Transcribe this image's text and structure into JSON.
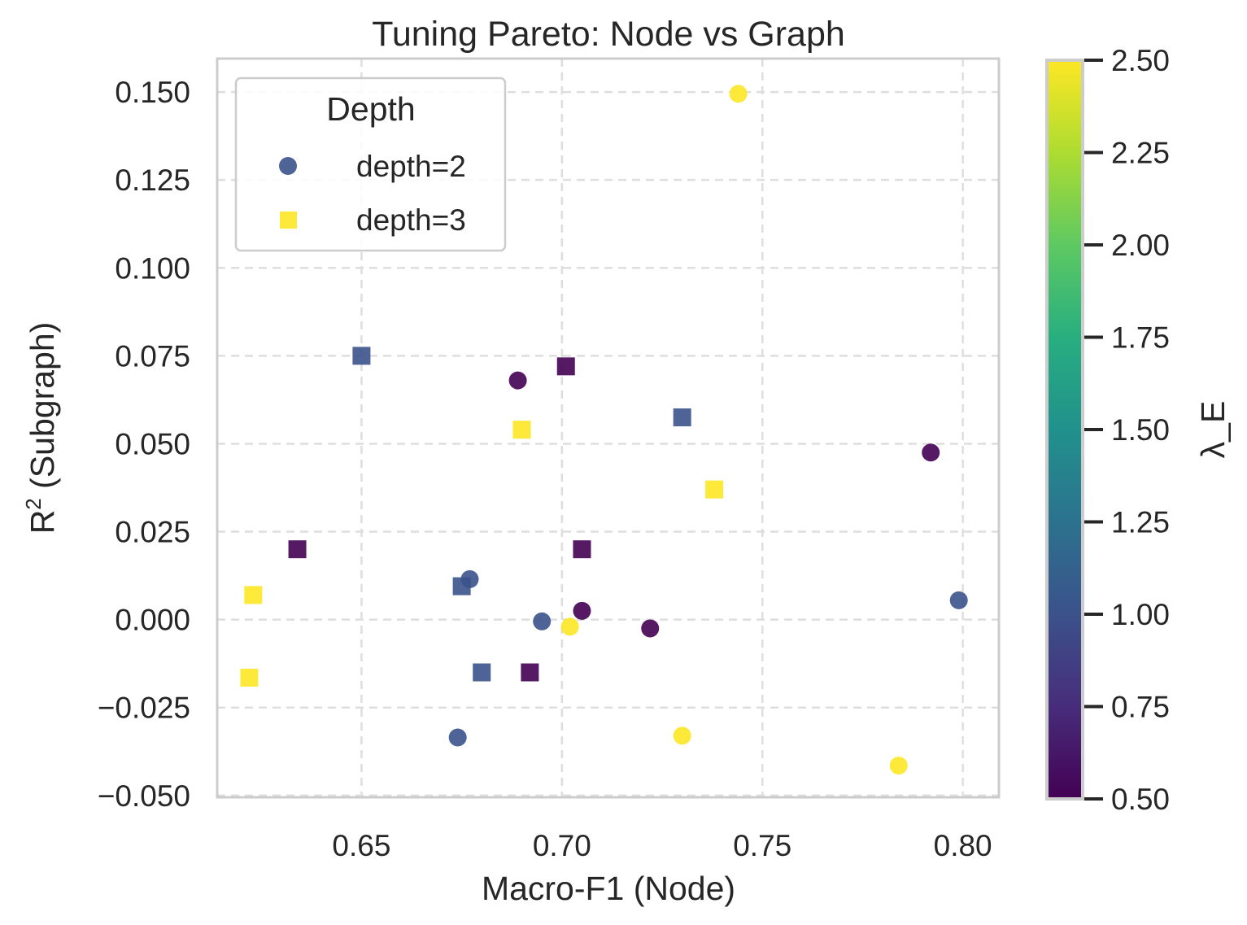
{
  "chart_data": {
    "type": "scatter",
    "title": "Tuning Pareto: Node vs Graph",
    "xlabel": "Macro-F1 (Node)",
    "ylabel_main": "R",
    "ylabel_sup": "2",
    "ylabel_rest": " (Subgraph)",
    "xlim": [
      0.614,
      0.809
    ],
    "ylim": [
      -0.0505,
      0.1595
    ],
    "xticks": [
      0.65,
      0.7,
      0.75,
      0.8
    ],
    "xtick_labels": [
      "0.65",
      "0.70",
      "0.75",
      "0.80"
    ],
    "yticks": [
      -0.05,
      -0.025,
      0.0,
      0.025,
      0.05,
      0.075,
      0.1,
      0.125,
      0.15
    ],
    "ytick_labels": [
      "−0.050",
      "−0.025",
      "0.000",
      "0.025",
      "0.050",
      "0.075",
      "0.100",
      "0.125",
      "0.150"
    ],
    "grid": true,
    "legend": {
      "title": "Depth",
      "placement": "top-left",
      "entries": [
        {
          "label": "depth=2",
          "marker": "circle",
          "color": "#3b528b"
        },
        {
          "label": "depth=3",
          "marker": "square",
          "color": "#fde725"
        }
      ]
    },
    "colorbar": {
      "label": "λ_E",
      "range": [
        0.5,
        2.5
      ],
      "ticks": [
        0.5,
        0.75,
        1.0,
        1.25,
        1.5,
        1.75,
        2.0,
        2.25,
        2.5
      ],
      "tick_labels": [
        "0.50",
        "0.75",
        "1.00",
        "1.25",
        "1.50",
        "1.75",
        "2.00",
        "2.25",
        "2.50"
      ],
      "colormap": "viridis"
    },
    "points": [
      {
        "x": 0.744,
        "y": 0.1495,
        "lambda_E": 2.5,
        "depth": 2
      },
      {
        "x": 0.689,
        "y": 0.068,
        "lambda_E": 0.5,
        "depth": 2
      },
      {
        "x": 0.792,
        "y": 0.0475,
        "lambda_E": 0.5,
        "depth": 2
      },
      {
        "x": 0.677,
        "y": 0.0115,
        "lambda_E": 1.0,
        "depth": 2
      },
      {
        "x": 0.799,
        "y": 0.0055,
        "lambda_E": 1.0,
        "depth": 2
      },
      {
        "x": 0.705,
        "y": 0.0025,
        "lambda_E": 0.5,
        "depth": 2
      },
      {
        "x": 0.695,
        "y": -0.0005,
        "lambda_E": 1.0,
        "depth": 2
      },
      {
        "x": 0.702,
        "y": -0.002,
        "lambda_E": 2.5,
        "depth": 2
      },
      {
        "x": 0.722,
        "y": -0.0025,
        "lambda_E": 0.5,
        "depth": 2
      },
      {
        "x": 0.674,
        "y": -0.0335,
        "lambda_E": 1.0,
        "depth": 2
      },
      {
        "x": 0.73,
        "y": -0.033,
        "lambda_E": 2.5,
        "depth": 2
      },
      {
        "x": 0.784,
        "y": -0.0415,
        "lambda_E": 2.5,
        "depth": 2
      },
      {
        "x": 0.65,
        "y": 0.075,
        "lambda_E": 1.0,
        "depth": 3
      },
      {
        "x": 0.701,
        "y": 0.072,
        "lambda_E": 0.5,
        "depth": 3
      },
      {
        "x": 0.73,
        "y": 0.0575,
        "lambda_E": 1.0,
        "depth": 3
      },
      {
        "x": 0.69,
        "y": 0.054,
        "lambda_E": 2.5,
        "depth": 3
      },
      {
        "x": 0.738,
        "y": 0.037,
        "lambda_E": 2.5,
        "depth": 3
      },
      {
        "x": 0.634,
        "y": 0.02,
        "lambda_E": 0.5,
        "depth": 3
      },
      {
        "x": 0.705,
        "y": 0.02,
        "lambda_E": 0.5,
        "depth": 3
      },
      {
        "x": 0.623,
        "y": 0.007,
        "lambda_E": 2.5,
        "depth": 3
      },
      {
        "x": 0.675,
        "y": 0.0095,
        "lambda_E": 1.0,
        "depth": 3
      },
      {
        "x": 0.68,
        "y": -0.015,
        "lambda_E": 1.0,
        "depth": 3
      },
      {
        "x": 0.692,
        "y": -0.015,
        "lambda_E": 0.5,
        "depth": 3
      },
      {
        "x": 0.622,
        "y": -0.0165,
        "lambda_E": 2.5,
        "depth": 3
      }
    ]
  }
}
